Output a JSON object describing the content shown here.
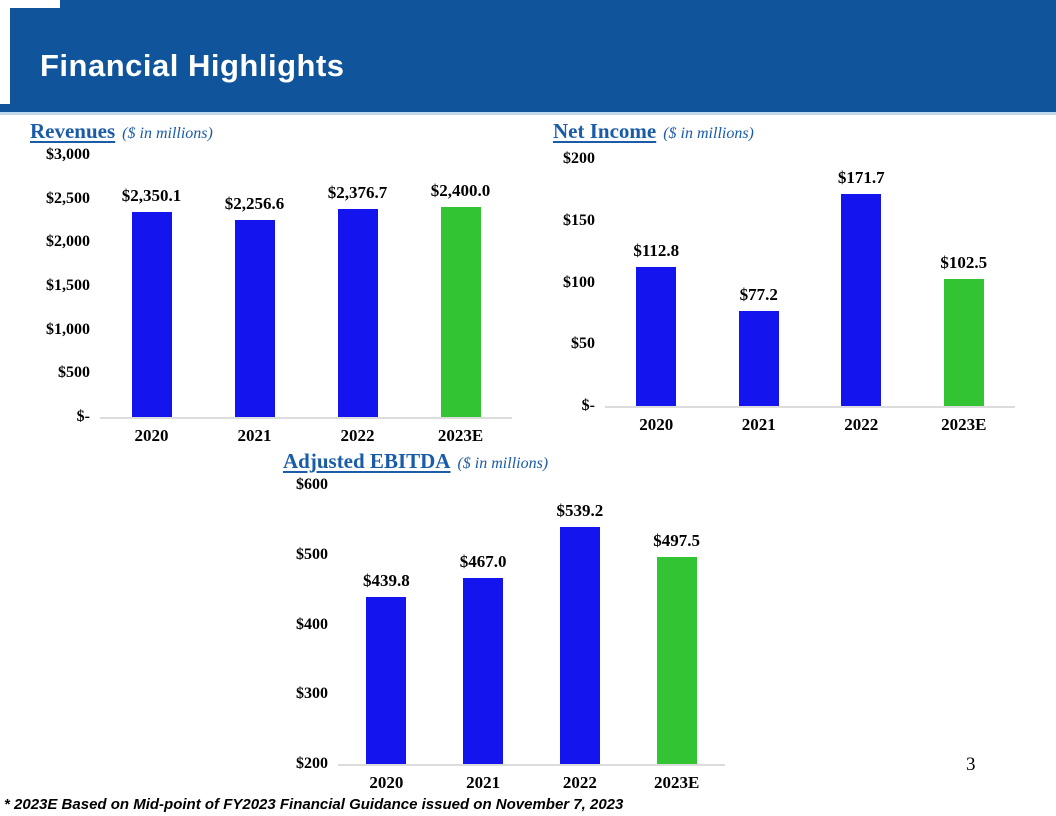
{
  "header": {
    "title": "Financial Highlights"
  },
  "footnote": "* 2023E Based on Mid-point of FY2023 Financial Guidance issued on November 7, 2023",
  "page_number": "3",
  "colors": {
    "header_blue": "#10549B",
    "header_underline": "#BFD9EC",
    "title_blue": "#1A5CA8",
    "bar_blue": "#1414EE",
    "bar_green": "#33C433",
    "axis_line": "#DCDCDC"
  },
  "chart_data": [
    {
      "type": "bar",
      "title": "Revenues",
      "subtitle": "($ in millions)",
      "categories": [
        "2020",
        "2021",
        "2022",
        "2023E"
      ],
      "values": [
        2350.1,
        2256.6,
        2376.7,
        2400.0
      ],
      "value_labels": [
        "$2,350.1",
        "$2,256.6",
        "$2,376.7",
        "$2,400.0"
      ],
      "bar_colors": [
        "bar_blue",
        "bar_blue",
        "bar_blue",
        "bar_green"
      ],
      "ylim": [
        0,
        3000
      ],
      "yticks": [
        {
          "value": 3000,
          "label": "$3,000"
        },
        {
          "value": 2500,
          "label": "$2,500"
        },
        {
          "value": 2000,
          "label": "$2,000"
        },
        {
          "value": 1500,
          "label": "$1,500"
        },
        {
          "value": 1000,
          "label": "$1,000"
        },
        {
          "value": 500,
          "label": "$500"
        },
        {
          "value": 0,
          "label": "$-"
        }
      ],
      "grid": false,
      "legend": "none"
    },
    {
      "type": "bar",
      "title": "Net Income",
      "subtitle": "($ in millions)",
      "categories": [
        "2020",
        "2021",
        "2022",
        "2023E"
      ],
      "values": [
        112.8,
        77.2,
        171.7,
        102.5
      ],
      "value_labels": [
        "$112.8",
        "$77.2",
        "$171.7",
        "$102.5"
      ],
      "bar_colors": [
        "bar_blue",
        "bar_blue",
        "bar_blue",
        "bar_green"
      ],
      "ylim": [
        0,
        200
      ],
      "yticks": [
        {
          "value": 200,
          "label": "$200"
        },
        {
          "value": 150,
          "label": "$150"
        },
        {
          "value": 100,
          "label": "$100"
        },
        {
          "value": 50,
          "label": "$50"
        },
        {
          "value": 0,
          "label": "$-"
        }
      ],
      "grid": false,
      "legend": "none"
    },
    {
      "type": "bar",
      "title": "Adjusted EBITDA",
      "subtitle": "($ in millions)",
      "categories": [
        "2020",
        "2021",
        "2022",
        "2023E"
      ],
      "values": [
        439.8,
        467.0,
        539.2,
        497.5
      ],
      "value_labels": [
        "$439.8",
        "$467.0",
        "$539.2",
        "$497.5"
      ],
      "bar_colors": [
        "bar_blue",
        "bar_blue",
        "bar_blue",
        "bar_green"
      ],
      "ylim": [
        200,
        600
      ],
      "yticks": [
        {
          "value": 600,
          "label": "$600"
        },
        {
          "value": 500,
          "label": "$500"
        },
        {
          "value": 400,
          "label": "$400"
        },
        {
          "value": 300,
          "label": "$300"
        },
        {
          "value": 200,
          "label": "$200"
        }
      ],
      "grid": false,
      "legend": "none"
    }
  ]
}
